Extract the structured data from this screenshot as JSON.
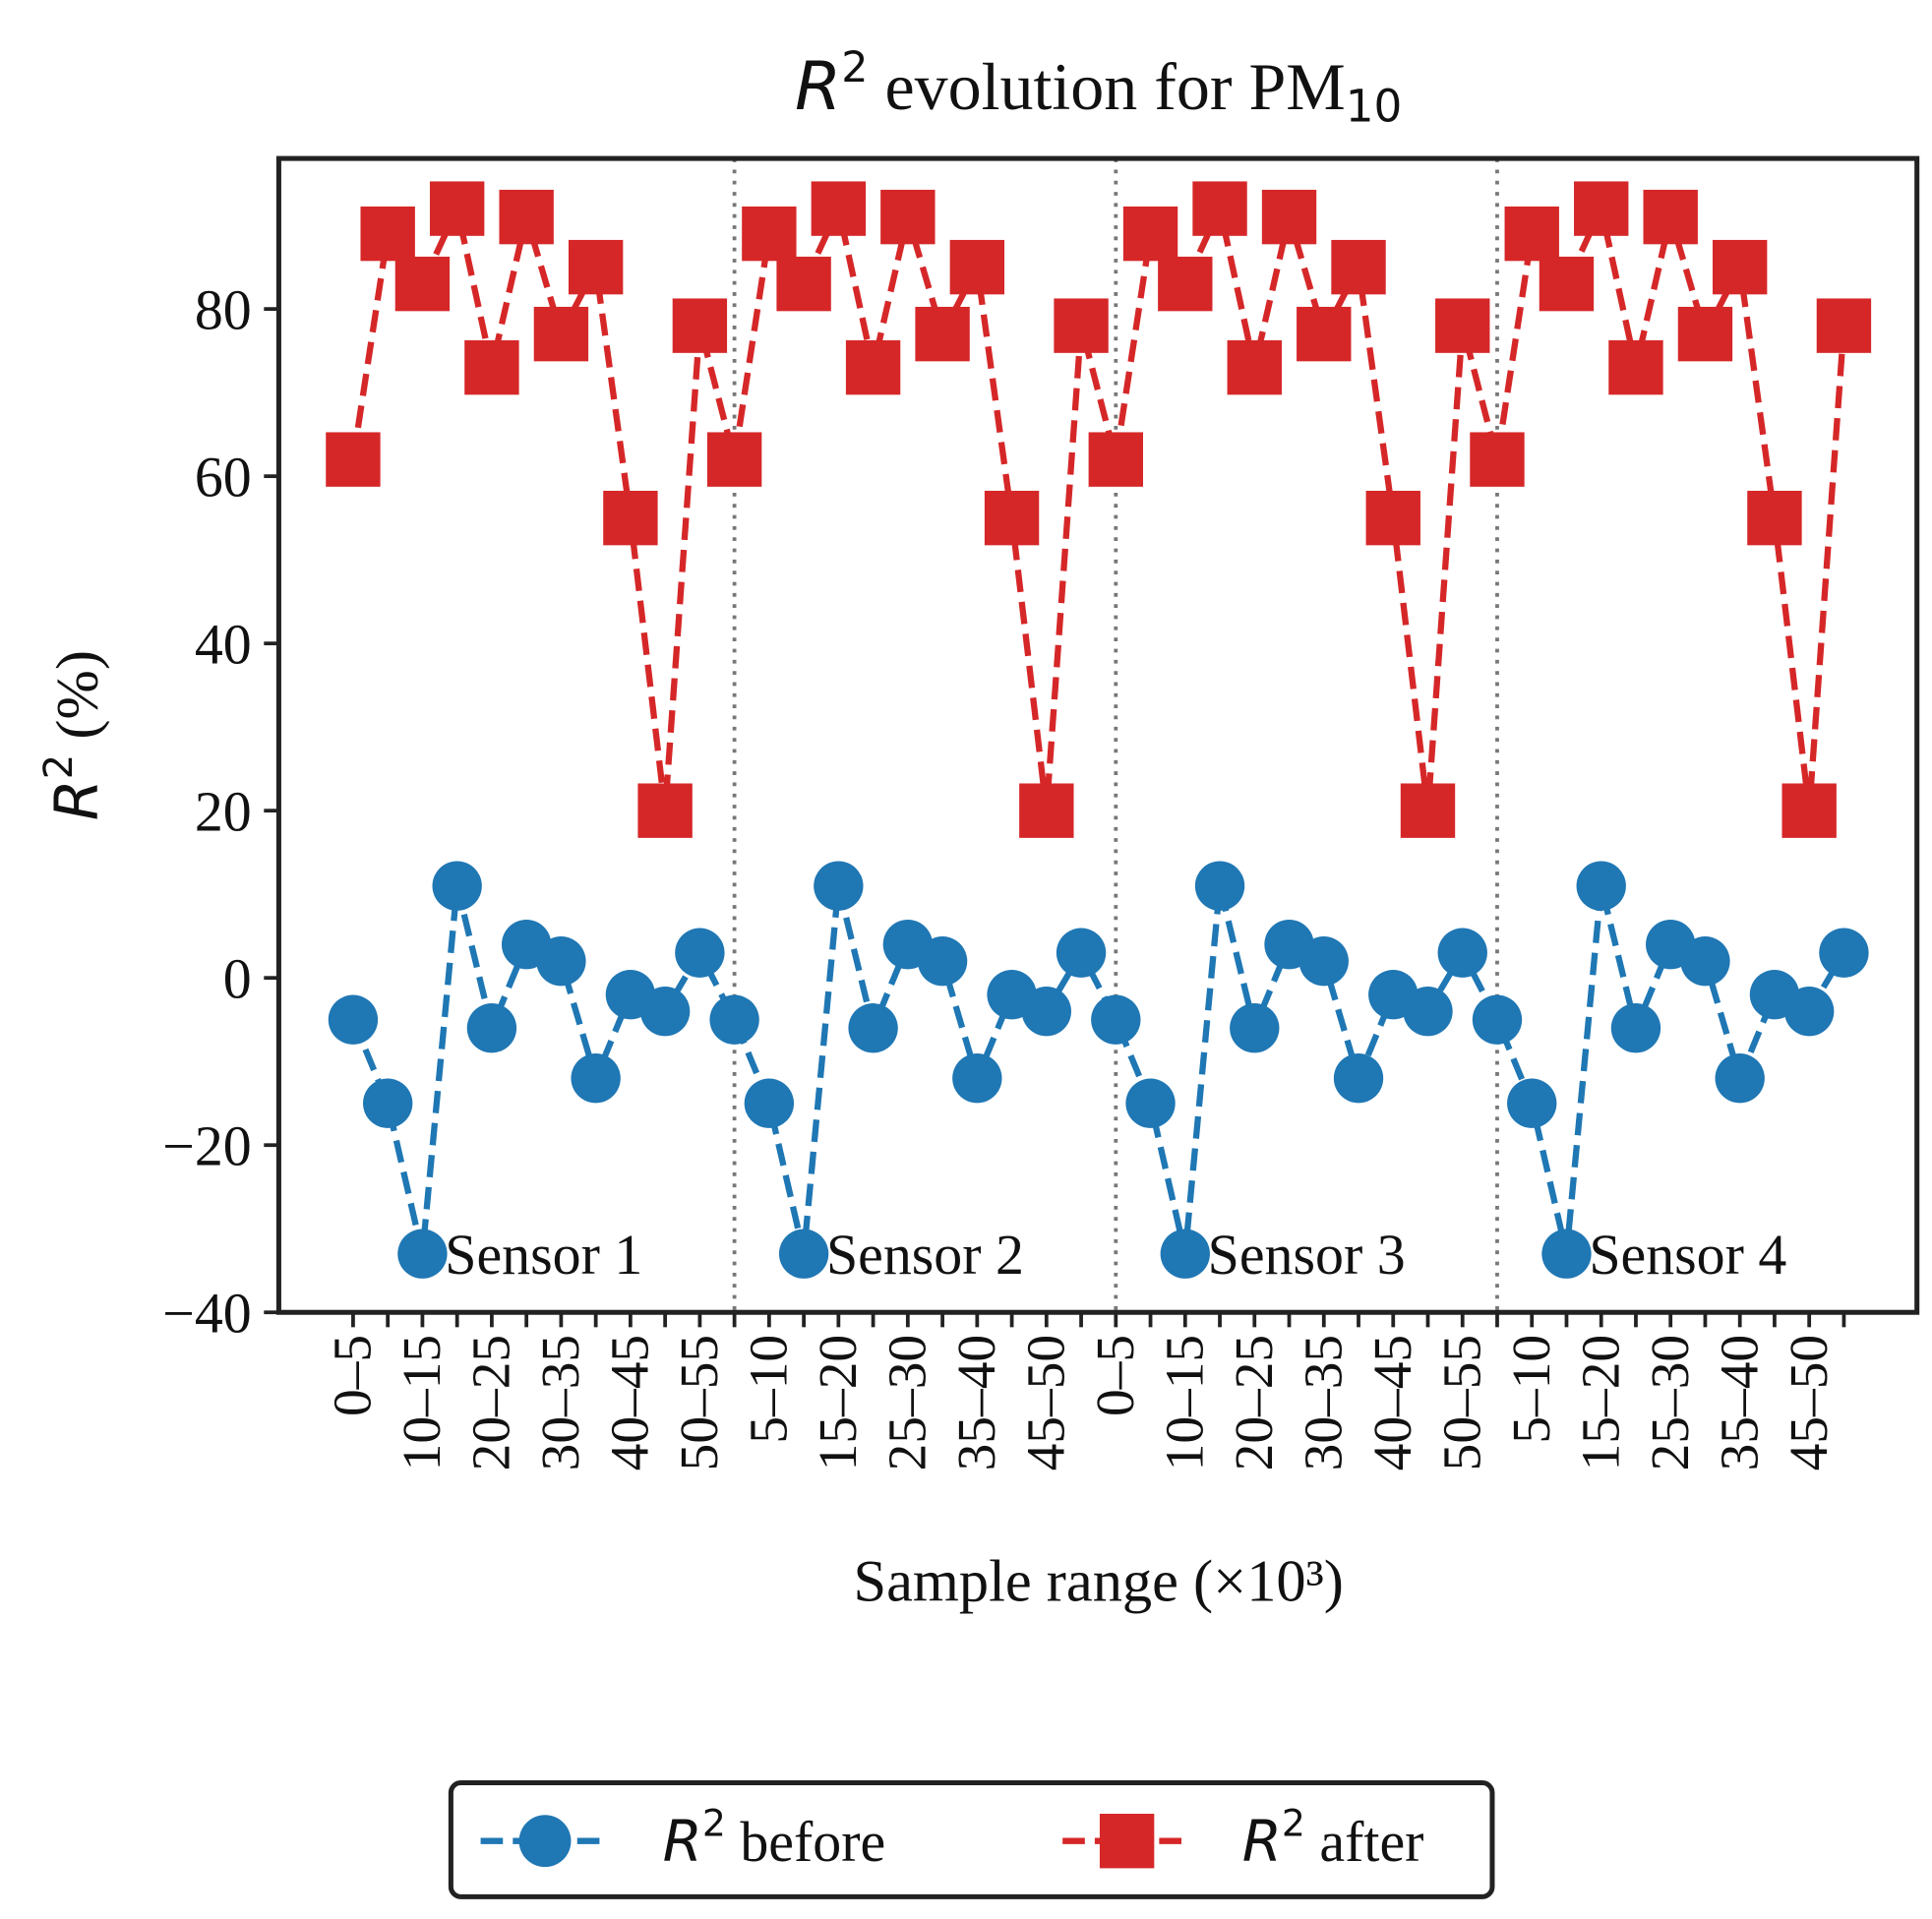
{
  "chart_data": {
    "type": "line",
    "title": {
      "prefix": "R",
      "sup": "2",
      "middle": " evolution for PM",
      "sub": "10"
    },
    "xlabel": "Sample range (×10³)",
    "ylabel": {
      "prefix": "R",
      "sup": "2",
      "suffix": " (%)"
    },
    "ylim": [
      -40,
      98
    ],
    "yticks": [
      -40,
      -20,
      0,
      20,
      40,
      60,
      80
    ],
    "ytick_labels": [
      "−40",
      "−20",
      "0",
      "20",
      "40",
      "60",
      "80"
    ],
    "x": [
      "0–5",
      "5–10",
      "10–15",
      "15–20",
      "20–25",
      "25–30",
      "30–35",
      "35–40",
      "40–45",
      "45–50",
      "50–55",
      "0–5",
      "5–10",
      "10–15",
      "15–20",
      "20–25",
      "25–30",
      "30–35",
      "35–40",
      "40–45",
      "45–50",
      "50–55",
      "0–5",
      "5–10",
      "10–15",
      "15–20",
      "20–25",
      "25–30",
      "30–35",
      "35–40",
      "40–45",
      "45–50",
      "50–55",
      "0–5",
      "5–10",
      "10–15",
      "15–20",
      "20–25",
      "25–30",
      "30–35",
      "35–40",
      "40–45",
      "45–50",
      "50–55"
    ],
    "xtick_every": 2,
    "grid": false,
    "sensors": [
      "Sensor 1",
      "Sensor 2",
      "Sensor 3",
      "Sensor 4"
    ],
    "points_per_sensor": 11,
    "series": [
      {
        "name": "before",
        "legend_prefix": "R",
        "legend_sup": "2",
        "legend_suffix": " before",
        "color": "#1f77b4",
        "marker": "circle",
        "values": [
          -5,
          -15,
          -33,
          11,
          -6,
          4,
          2,
          -12,
          -2,
          -4,
          3,
          -5,
          -15,
          -33,
          11,
          -6,
          4,
          2,
          -12,
          -2,
          -4,
          3,
          -5,
          -15,
          -33,
          11,
          -6,
          4,
          2,
          -12,
          -2,
          -4,
          3,
          -5,
          -15,
          -33,
          11,
          -6,
          4,
          2,
          -12,
          -2,
          -4,
          3
        ]
      },
      {
        "name": "after",
        "legend_prefix": "R",
        "legend_sup": "2",
        "legend_suffix": " after",
        "color": "#d62728",
        "marker": "square",
        "values": [
          62,
          89,
          83,
          92,
          73,
          91,
          77,
          85,
          55,
          20,
          78,
          62,
          89,
          83,
          92,
          73,
          91,
          77,
          85,
          55,
          20,
          78,
          62,
          89,
          83,
          92,
          73,
          91,
          77,
          85,
          55,
          20,
          78,
          62,
          89,
          83,
          92,
          73,
          91,
          77,
          85,
          55,
          20,
          78
        ]
      }
    ],
    "legend_placement": "bottom-center"
  }
}
